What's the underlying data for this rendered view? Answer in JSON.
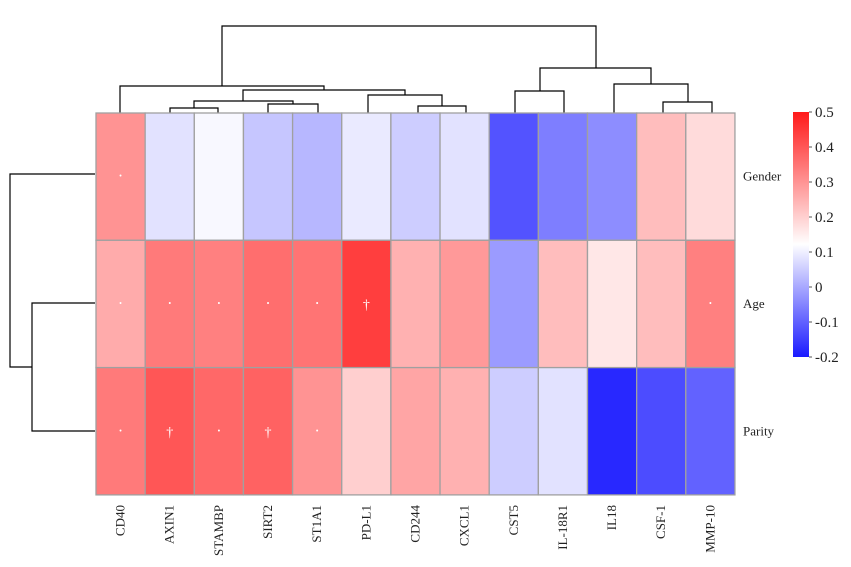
{
  "chart_data": {
    "type": "heatmap",
    "title": "",
    "xlabel": "",
    "ylabel": "",
    "columns": [
      "CD40",
      "AXIN1",
      "STAMBP",
      "SIRT2",
      "ST1A1",
      "PD-L1",
      "CD244",
      "CXCL1",
      "CST5",
      "IL-18R1",
      "IL18",
      "CSF-1",
      "MMP-10"
    ],
    "rows": [
      "Gender",
      "Age",
      "Parity"
    ],
    "values": [
      [
        0.3,
        0.08,
        0.11,
        0.04,
        0.02,
        0.09,
        0.05,
        0.08,
        -0.12,
        -0.06,
        -0.04,
        0.23,
        0.18
      ],
      [
        0.26,
        0.34,
        0.33,
        0.36,
        0.35,
        0.44,
        0.25,
        0.29,
        -0.02,
        0.23,
        0.16,
        0.23,
        0.33
      ],
      [
        0.34,
        0.4,
        0.37,
        0.38,
        0.3,
        0.2,
        0.27,
        0.25,
        0.05,
        0.08,
        -0.18,
        -0.13,
        -0.1
      ]
    ],
    "annotations": [
      [
        "•",
        "",
        "",
        "",
        "",
        "",
        "",
        "",
        "",
        "",
        "",
        "",
        ""
      ],
      [
        "•",
        "•",
        "•",
        "•",
        "•",
        "†",
        "",
        "",
        "",
        "",
        "",
        "",
        "•"
      ],
      [
        "•",
        "†",
        "•",
        "†",
        "•",
        "",
        "",
        "",
        "",
        "",
        "",
        "",
        ""
      ]
    ],
    "colorbar": {
      "min": -0.2,
      "max": 0.5,
      "ticks": [
        "0.5",
        "0.4",
        "0.3",
        "0.2",
        "0.1",
        "0",
        "-0.1",
        "-0.2"
      ],
      "tick_values": [
        0.5,
        0.4,
        0.3,
        0.2,
        0.1,
        0,
        -0.1,
        -0.2
      ],
      "low_color": "#1a1aff",
      "mid_color": "#ffffff",
      "high_color": "#ff1a1a",
      "mid_value": 0.12
    },
    "cell_border_color": "#a0a0a0",
    "dendrogram_color": "#000000"
  }
}
